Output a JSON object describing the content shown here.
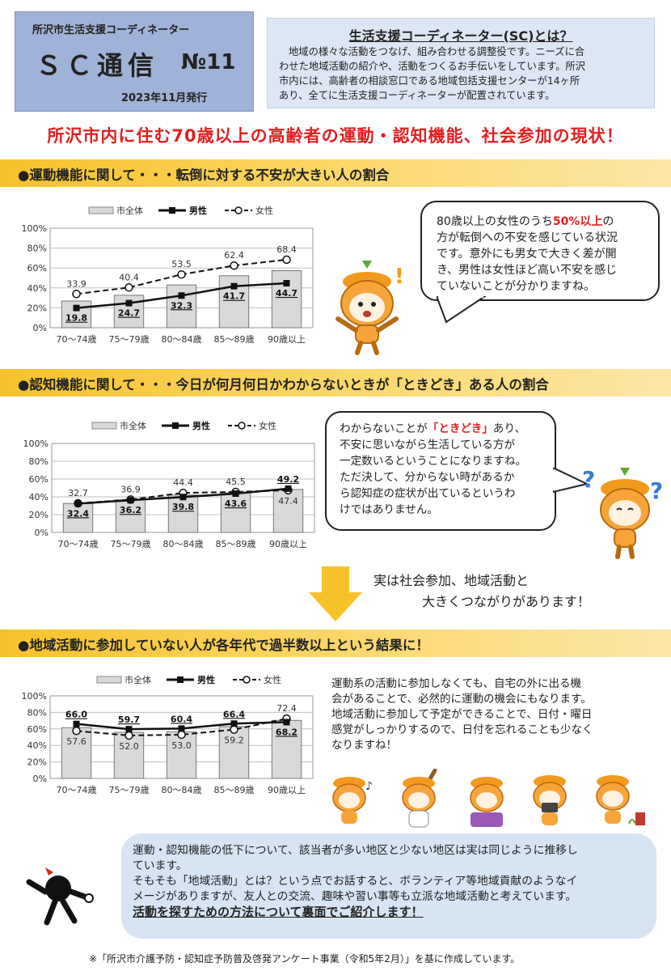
{
  "header": {
    "org": "所沢市生活支援コーディネーター",
    "title": "ＳＣ通信",
    "issue": "№11",
    "date": "2023年11月発行"
  },
  "sc_intro": {
    "title": "生活支援コーディネーター(SC)とは？",
    "lines": [
      "地域の様々な活動をつなげ、組み合わせる調整役です。ニーズに合",
      "わせた地域活動の紹介や、活動をつくるお手伝いをしています。所沢",
      "市内には、高齢者の相談窓口である地域包括支援センターが14ヶ所",
      "あり、全てに生活支援コーディネーターが配置されています。"
    ]
  },
  "main_title": "所沢市内に住む70歳以上の高齢者の運動・認知機能、社会参加の現状！",
  "section1": {
    "heading": "●運動機能に関して・・・転倒に対する不安が大きい人の割合",
    "bubble": {
      "l1": "80歳以上の女性のうち",
      "l1_emph": "50%以上",
      "l1_end": "の",
      "l2": "方が転倒への不安を感じている状況",
      "l3": "です。意外にも男女で大きく差が開",
      "l4": "き、男性は女性ほど高い不安を感じ",
      "l5": "ていないことが分かりますね。"
    }
  },
  "section2": {
    "heading": "●認知機能に関して・・・今日が何月何日かわからないときが「ときどき」ある人の割合",
    "bubble": {
      "l1": "わからないことが",
      "l1_emph": "「ときどき」",
      "l1_end": "あり、",
      "l2": "不安に思いながら生活している方が",
      "l3": "一定数いるということになりますね。",
      "l4": "ただ決して、分からない時があるか",
      "l5": "ら認知症の症状が出ているというわ",
      "l6": "けではありません。"
    }
  },
  "link": {
    "l1": "実は社会参加、地域活動と",
    "l2": "大きくつながりがあります！"
  },
  "section3": {
    "heading": "●地域活動に参加していない人が各年代で過半数以上という結果に！",
    "para": [
      "運動系の活動に参加しなくても、自宅の外に出る機",
      "会があることで、必然的に運動の機会にもなります。",
      "地域活動に参加して予定ができることで、日付・曜日",
      "感覚がしっかりするので、日付を忘れることも少なく",
      "なりますね！"
    ]
  },
  "info": {
    "lines": [
      "運動・認知機能の低下について、該当者が多い地区と少ない地区は実は同じように推移し",
      "ています。",
      "そもそも「地域活動」とは？という点でお話すると、ボランティア等地域貢献のようなイ",
      "メージがありますが、友人との交流、趣味や習い事等も立派な地域活動と考えています。"
    ],
    "emph": "活動を探すための方法について裏面でご紹介します！"
  },
  "footnote": "※「所沢市介護予防・認知症予防普及啓発アンケート事業（令和5年2月）」を基に作成しています。",
  "colors": {
    "accent_red": "#e02020",
    "band": "#f7c12a",
    "header_blue": "#9fb2d7",
    "bar_gray": "#d9d9d9"
  },
  "chart_data": [
    {
      "type": "bar",
      "categories": [
        "70～74歳",
        "75～79歳",
        "80～84歳",
        "85～89歳",
        "90歳以上"
      ],
      "legend": [
        "市全体",
        "男性",
        "女性"
      ],
      "yticks": [
        "0%",
        "20%",
        "40%",
        "60%",
        "80%",
        "100%"
      ],
      "ylim": [
        0,
        100
      ],
      "series": [
        {
          "name": "市全体",
          "kind": "bar",
          "values": [
            26.8,
            32.6,
            43.0,
            52.2,
            57.3
          ]
        },
        {
          "name": "男性",
          "kind": "line",
          "values": [
            19.8,
            24.7,
            32.3,
            41.7,
            44.7
          ]
        },
        {
          "name": "女性",
          "kind": "dashed-line",
          "values": [
            33.9,
            40.4,
            53.5,
            62.4,
            68.4
          ]
        }
      ]
    },
    {
      "type": "bar",
      "categories": [
        "70～74歳",
        "75～79歳",
        "80～84歳",
        "85～89歳",
        "90歳以上"
      ],
      "legend": [
        "市全体",
        "男性",
        "女性"
      ],
      "yticks": [
        "0%",
        "20%",
        "40%",
        "60%",
        "80%",
        "100%"
      ],
      "ylim": [
        0,
        100
      ],
      "series": [
        {
          "name": "市全体",
          "kind": "bar",
          "values": [
            32.5,
            36.5,
            42.0,
            44.5,
            48.2
          ]
        },
        {
          "name": "男性",
          "kind": "line",
          "values": [
            32.4,
            36.2,
            39.8,
            43.6,
            49.2
          ]
        },
        {
          "name": "女性",
          "kind": "dashed-line",
          "values": [
            32.7,
            36.9,
            44.4,
            45.5,
            47.4
          ]
        }
      ]
    },
    {
      "type": "bar",
      "categories": [
        "70～74歳",
        "75～79歳",
        "80～84歳",
        "85～89歳",
        "90歳以上"
      ],
      "legend": [
        "市全体",
        "男性",
        "女性"
      ],
      "yticks": [
        "0%",
        "20%",
        "40%",
        "60%",
        "80%",
        "100%"
      ],
      "ylim": [
        0,
        100
      ],
      "series": [
        {
          "name": "市全体",
          "kind": "bar",
          "values": [
            61.5,
            55.8,
            56.5,
            62.8,
            70.3
          ]
        },
        {
          "name": "男性",
          "kind": "line",
          "values": [
            66.0,
            59.7,
            60.4,
            66.4,
            68.2
          ]
        },
        {
          "name": "女性",
          "kind": "dashed-line",
          "values": [
            57.6,
            52.0,
            53.0,
            59.2,
            72.4
          ]
        }
      ]
    }
  ]
}
